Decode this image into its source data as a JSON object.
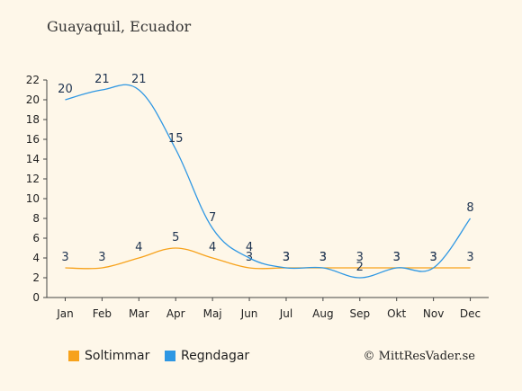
{
  "title": "Guayaquil, Ecuador",
  "credit": "© MittResVader.se",
  "chart_data": {
    "type": "line",
    "categories": [
      "Jan",
      "Feb",
      "Mar",
      "Apr",
      "Maj",
      "Jun",
      "Jul",
      "Aug",
      "Sep",
      "Okt",
      "Nov",
      "Dec"
    ],
    "ylim": [
      0,
      22
    ],
    "yticks": [
      0,
      2,
      4,
      6,
      8,
      10,
      12,
      14,
      16,
      18,
      20,
      22
    ],
    "grid": false,
    "legend_position": "bottom-left",
    "series": [
      {
        "name": "Soltimmar",
        "color": "#f7a21b",
        "values": [
          3,
          3,
          4,
          5,
          4,
          3,
          3,
          3,
          3,
          3,
          3,
          3
        ]
      },
      {
        "name": "Regndagar",
        "color": "#2e97e3",
        "values": [
          20,
          21,
          21,
          15,
          7,
          4,
          3,
          3,
          2,
          3,
          3,
          8
        ]
      }
    ]
  }
}
